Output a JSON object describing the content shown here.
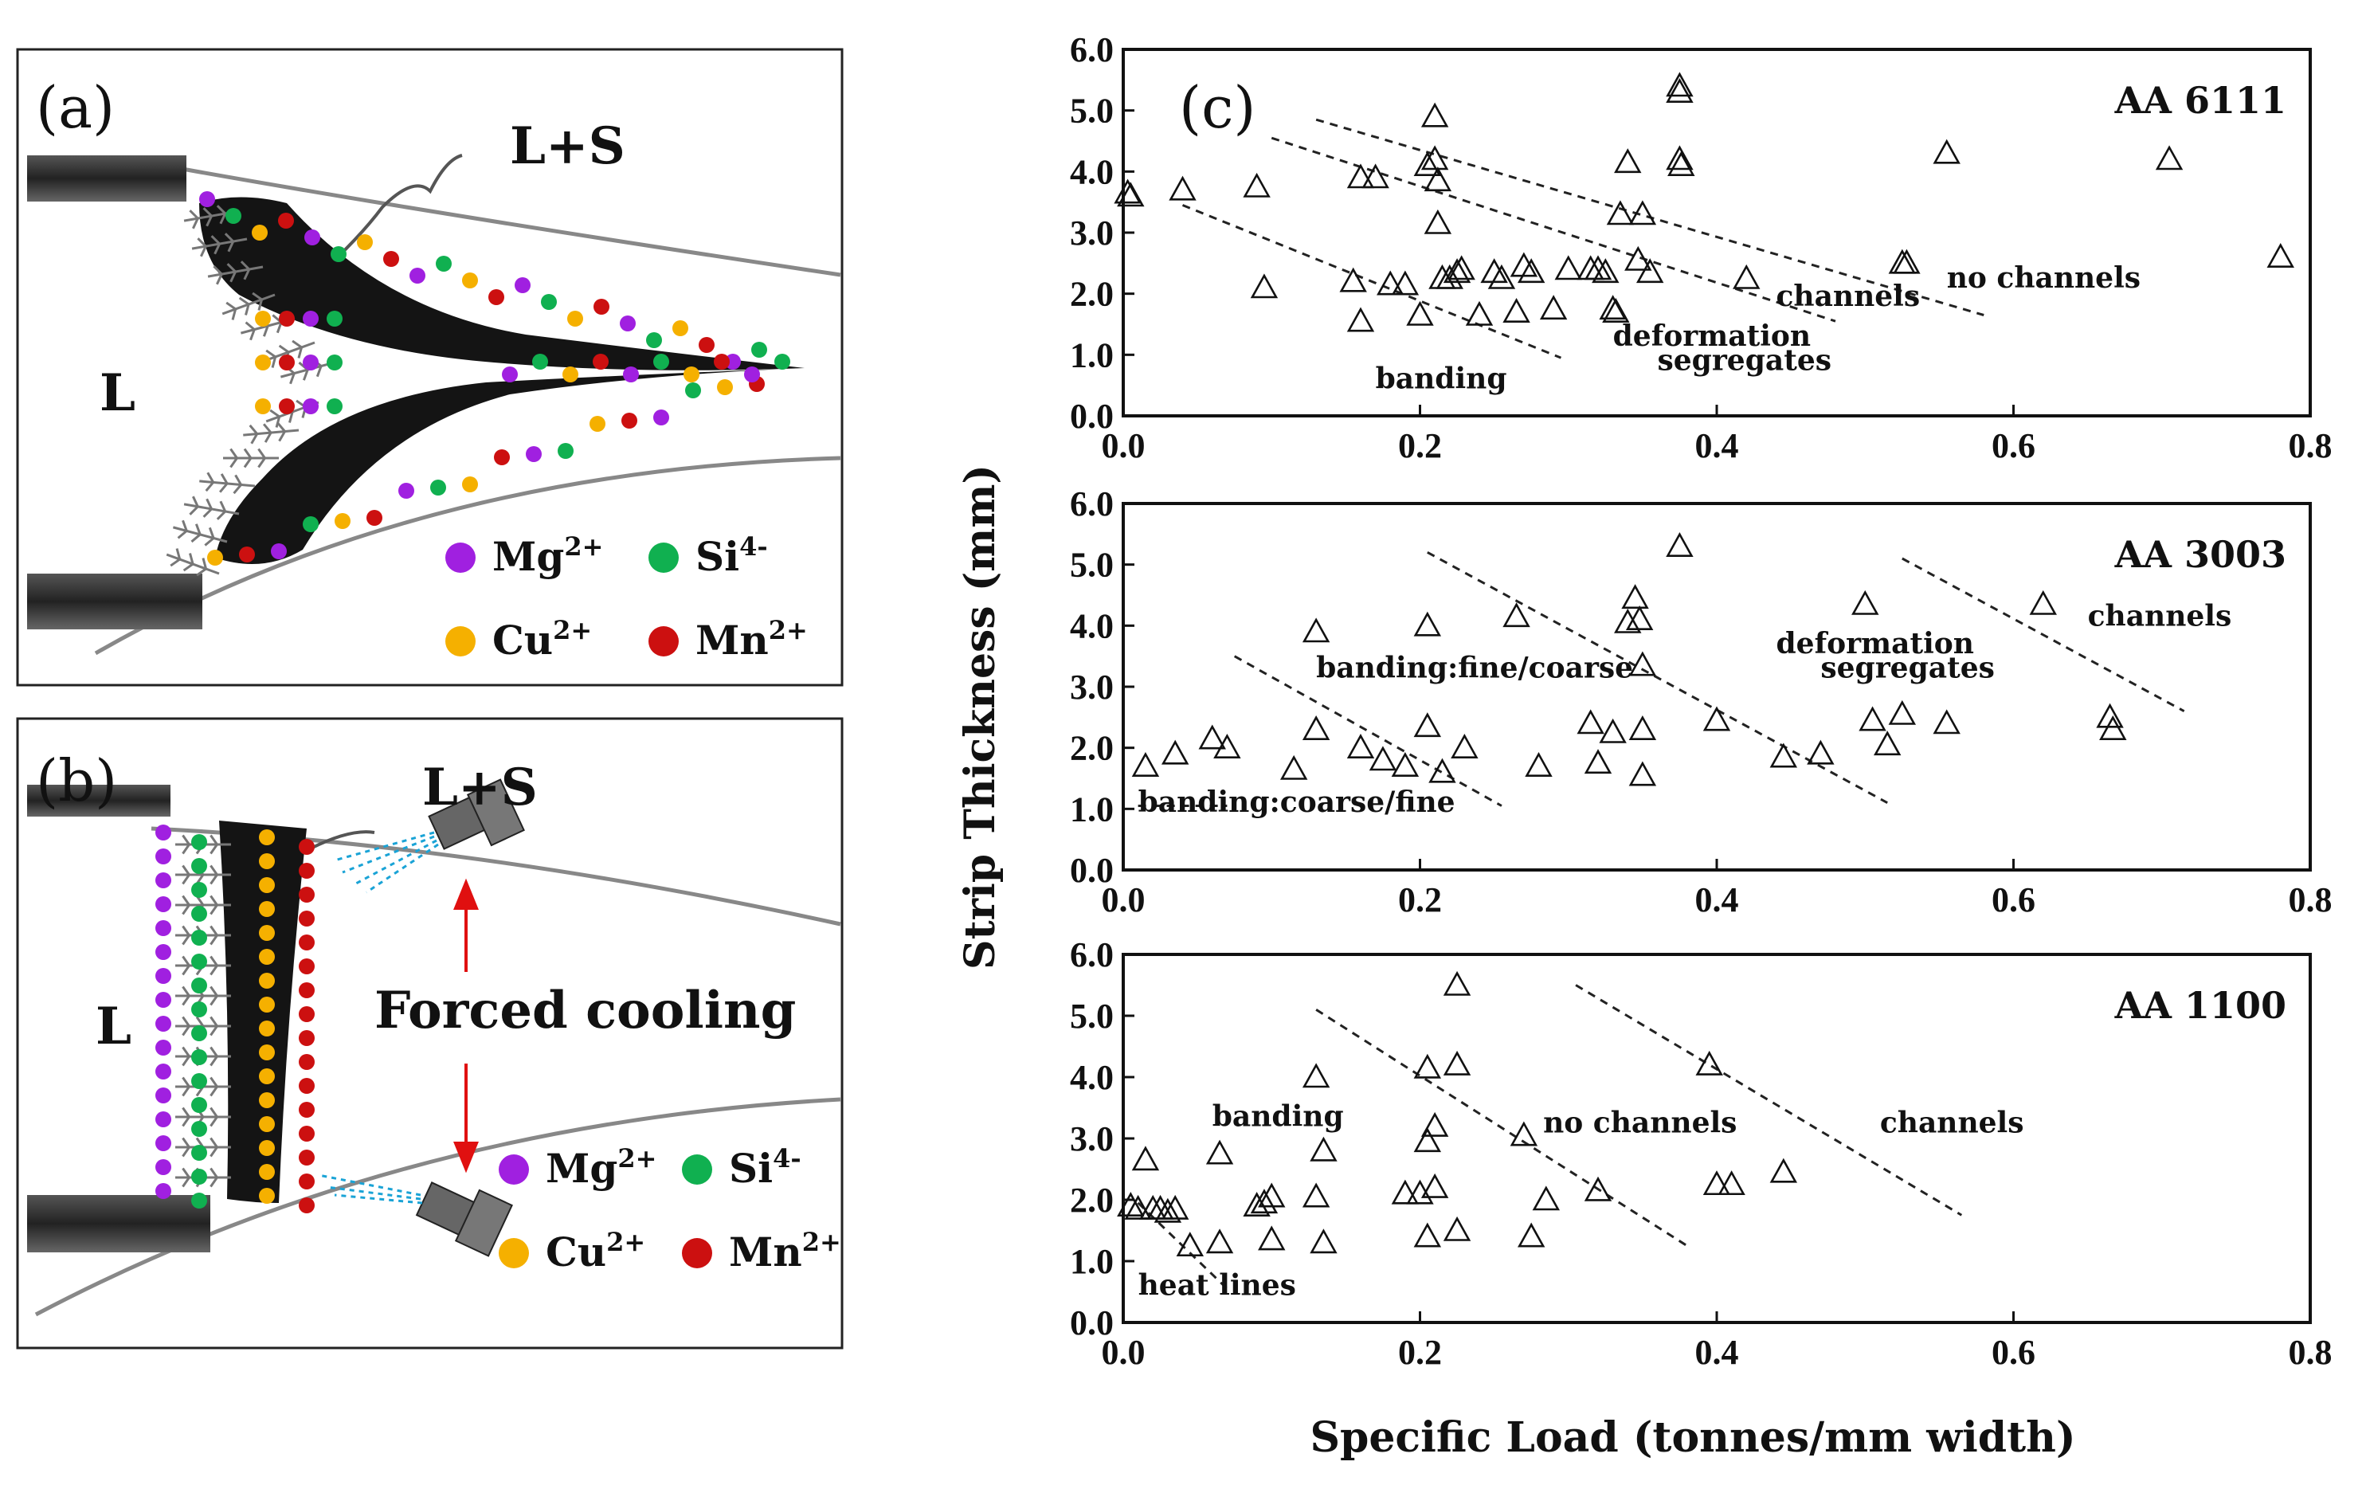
{
  "panel_a": {
    "tag": "(a)",
    "label_ls": "L+S",
    "label_l": "L",
    "legend": [
      {
        "ion": "Mg",
        "charge": "2+",
        "color": "#a020e0"
      },
      {
        "ion": "Si",
        "charge": "4-",
        "color": "#10b050"
      },
      {
        "ion": "Cu",
        "charge": "2+",
        "color": "#f5b000"
      },
      {
        "ion": "Mn",
        "charge": "2+",
        "color": "#cc1010"
      }
    ]
  },
  "panel_b": {
    "tag": "(b)",
    "label_ls": "L+S",
    "label_l": "L",
    "forced_cooling": "Forced  cooling",
    "legend": [
      {
        "ion": "Mg",
        "charge": "2+",
        "color": "#a020e0"
      },
      {
        "ion": "Si",
        "charge": "4-",
        "color": "#10b050"
      },
      {
        "ion": "Cu",
        "charge": "2+",
        "color": "#f5b000"
      },
      {
        "ion": "Mn",
        "charge": "2+",
        "color": "#cc1010"
      }
    ]
  },
  "panel_c": {
    "tag": "(c)",
    "ylabel": "Strip Thickness (mm)",
    "xlabel": "Specific Load (tonnes/mm width)"
  },
  "chart_data": [
    {
      "type": "scatter",
      "title": "AA 6111",
      "xlim": [
        0,
        0.8
      ],
      "ylim": [
        0,
        6
      ],
      "x_ticks": [
        "0.0",
        "0.2",
        "0.4",
        "0.6",
        "0.8"
      ],
      "y_ticks": [
        "0.0",
        "1.0",
        "2.0",
        "3.0",
        "4.0",
        "5.0",
        "6.0"
      ],
      "annotations": [
        {
          "text": "no channels",
          "x": 0.555,
          "y": 2.1
        },
        {
          "text": "channels",
          "x": 0.44,
          "y": 1.8
        },
        {
          "text": "deformation",
          "x": 0.33,
          "y": 1.15
        },
        {
          "text": "segregates",
          "x": 0.36,
          "y": 0.75
        },
        {
          "text": "banding",
          "x": 0.17,
          "y": 0.45
        }
      ],
      "dividers": [
        {
          "x": [
            0.13,
            0.58
          ],
          "y": [
            4.85,
            1.65
          ]
        },
        {
          "x": [
            0.1,
            0.48
          ],
          "y": [
            4.55,
            1.55
          ]
        },
        {
          "x": [
            0.04,
            0.295
          ],
          "y": [
            3.45,
            0.95
          ]
        }
      ],
      "points": [
        [
          0.003,
          3.65
        ],
        [
          0.005,
          3.6
        ],
        [
          0.04,
          3.7
        ],
        [
          0.09,
          3.75
        ],
        [
          0.095,
          2.1
        ],
        [
          0.155,
          2.2
        ],
        [
          0.16,
          1.55
        ],
        [
          0.16,
          3.9
        ],
        [
          0.17,
          3.9
        ],
        [
          0.18,
          2.15
        ],
        [
          0.19,
          2.15
        ],
        [
          0.2,
          1.65
        ],
        [
          0.205,
          4.1
        ],
        [
          0.21,
          4.9
        ],
        [
          0.21,
          4.2
        ],
        [
          0.212,
          3.85
        ],
        [
          0.212,
          3.15
        ],
        [
          0.215,
          2.25
        ],
        [
          0.22,
          2.25
        ],
        [
          0.225,
          2.35
        ],
        [
          0.228,
          2.4
        ],
        [
          0.24,
          1.65
        ],
        [
          0.25,
          2.35
        ],
        [
          0.255,
          2.25
        ],
        [
          0.265,
          1.7
        ],
        [
          0.27,
          2.45
        ],
        [
          0.275,
          2.35
        ],
        [
          0.29,
          1.75
        ],
        [
          0.3,
          2.4
        ],
        [
          0.315,
          2.4
        ],
        [
          0.32,
          2.4
        ],
        [
          0.325,
          2.35
        ],
        [
          0.33,
          1.75
        ],
        [
          0.332,
          1.7
        ],
        [
          0.335,
          3.3
        ],
        [
          0.34,
          4.15
        ],
        [
          0.347,
          2.55
        ],
        [
          0.35,
          3.3
        ],
        [
          0.355,
          2.35
        ],
        [
          0.375,
          5.4
        ],
        [
          0.375,
          5.3
        ],
        [
          0.375,
          4.2
        ],
        [
          0.376,
          4.1
        ],
        [
          0.42,
          2.25
        ],
        [
          0.525,
          2.5
        ],
        [
          0.528,
          2.5
        ],
        [
          0.555,
          4.3
        ],
        [
          0.705,
          4.2
        ],
        [
          0.78,
          2.6
        ]
      ]
    },
    {
      "type": "scatter",
      "title": "AA 3003",
      "xlim": [
        0,
        0.8
      ],
      "ylim": [
        0,
        6
      ],
      "x_ticks": [
        "0.0",
        "0.2",
        "0.4",
        "0.6",
        "0.8"
      ],
      "y_ticks": [
        "0.0",
        "1.0",
        "2.0",
        "3.0",
        "4.0",
        "5.0",
        "6.0"
      ],
      "annotations": [
        {
          "text": "channels",
          "x": 0.65,
          "y": 4.0
        },
        {
          "text": "deformation",
          "x": 0.44,
          "y": 3.55
        },
        {
          "text": "segregates",
          "x": 0.47,
          "y": 3.15
        },
        {
          "text": "banding:fine/coarse",
          "x": 0.13,
          "y": 3.15
        },
        {
          "text": "banding:coarse/fine",
          "x": 0.01,
          "y": 0.95
        }
      ],
      "dividers": [
        {
          "x": [
            0.525,
            0.715
          ],
          "y": [
            5.1,
            2.6
          ]
        },
        {
          "x": [
            0.205,
            0.515
          ],
          "y": [
            5.2,
            1.1
          ]
        },
        {
          "x": [
            0.075,
            0.255
          ],
          "y": [
            3.5,
            1.05
          ]
        },
        {
          "x": [
            0.01,
            0.07
          ],
          "y": [
            1.05,
            1.05
          ]
        }
      ],
      "points": [
        [
          0.015,
          1.7
        ],
        [
          0.035,
          1.9
        ],
        [
          0.06,
          2.15
        ],
        [
          0.07,
          2.0
        ],
        [
          0.115,
          1.65
        ],
        [
          0.13,
          3.9
        ],
        [
          0.13,
          2.3
        ],
        [
          0.16,
          2.0
        ],
        [
          0.175,
          1.8
        ],
        [
          0.19,
          1.7
        ],
        [
          0.205,
          4.0
        ],
        [
          0.205,
          2.35
        ],
        [
          0.215,
          1.6
        ],
        [
          0.23,
          2.0
        ],
        [
          0.265,
          4.15
        ],
        [
          0.28,
          1.7
        ],
        [
          0.315,
          2.4
        ],
        [
          0.32,
          1.75
        ],
        [
          0.33,
          2.25
        ],
        [
          0.34,
          4.05
        ],
        [
          0.345,
          4.45
        ],
        [
          0.348,
          4.1
        ],
        [
          0.35,
          3.35
        ],
        [
          0.35,
          2.3
        ],
        [
          0.35,
          1.55
        ],
        [
          0.375,
          5.3
        ],
        [
          0.4,
          2.45
        ],
        [
          0.445,
          1.85
        ],
        [
          0.47,
          1.9
        ],
        [
          0.5,
          4.35
        ],
        [
          0.505,
          2.45
        ],
        [
          0.515,
          2.05
        ],
        [
          0.525,
          2.55
        ],
        [
          0.555,
          2.4
        ],
        [
          0.62,
          4.35
        ],
        [
          0.665,
          2.5
        ],
        [
          0.667,
          2.3
        ]
      ]
    },
    {
      "type": "scatter",
      "title": "AA 1100",
      "xlim": [
        0,
        0.8
      ],
      "ylim": [
        0,
        6
      ],
      "x_ticks": [
        "0.0",
        "0.2",
        "0.4",
        "0.6",
        "0.8"
      ],
      "y_ticks": [
        "0.0",
        "1.0",
        "2.0",
        "3.0",
        "4.0",
        "5.0",
        "6.0"
      ],
      "annotations": [
        {
          "text": "channels",
          "x": 0.51,
          "y": 3.1
        },
        {
          "text": "no channels",
          "x": 0.283,
          "y": 3.1
        },
        {
          "text": "banding",
          "x": 0.06,
          "y": 3.2
        },
        {
          "text": "heat lines",
          "x": 0.01,
          "y": 0.45
        }
      ],
      "dividers": [
        {
          "x": [
            0.305,
            0.565
          ],
          "y": [
            5.5,
            1.75
          ]
        },
        {
          "x": [
            0.13,
            0.38
          ],
          "y": [
            5.1,
            1.25
          ]
        },
        {
          "x": [
            0.01,
            0.07
          ],
          "y": [
            1.95,
            0.55
          ]
        }
      ],
      "points": [
        [
          0.005,
          1.9
        ],
        [
          0.01,
          1.85
        ],
        [
          0.015,
          2.65
        ],
        [
          0.02,
          1.85
        ],
        [
          0.025,
          1.85
        ],
        [
          0.03,
          1.8
        ],
        [
          0.035,
          1.85
        ],
        [
          0.045,
          1.25
        ],
        [
          0.065,
          2.75
        ],
        [
          0.065,
          1.3
        ],
        [
          0.09,
          1.9
        ],
        [
          0.095,
          1.95
        ],
        [
          0.1,
          1.35
        ],
        [
          0.1,
          2.05
        ],
        [
          0.13,
          2.05
        ],
        [
          0.13,
          4.0
        ],
        [
          0.135,
          2.8
        ],
        [
          0.135,
          1.3
        ],
        [
          0.19,
          2.1
        ],
        [
          0.2,
          2.1
        ],
        [
          0.205,
          4.15
        ],
        [
          0.205,
          2.95
        ],
        [
          0.205,
          1.4
        ],
        [
          0.21,
          3.2
        ],
        [
          0.21,
          2.2
        ],
        [
          0.225,
          5.5
        ],
        [
          0.225,
          4.2
        ],
        [
          0.225,
          1.5
        ],
        [
          0.27,
          3.05
        ],
        [
          0.275,
          1.4
        ],
        [
          0.285,
          2.0
        ],
        [
          0.32,
          2.15
        ],
        [
          0.395,
          4.2
        ],
        [
          0.4,
          2.25
        ],
        [
          0.41,
          2.25
        ],
        [
          0.445,
          2.45
        ]
      ]
    }
  ]
}
